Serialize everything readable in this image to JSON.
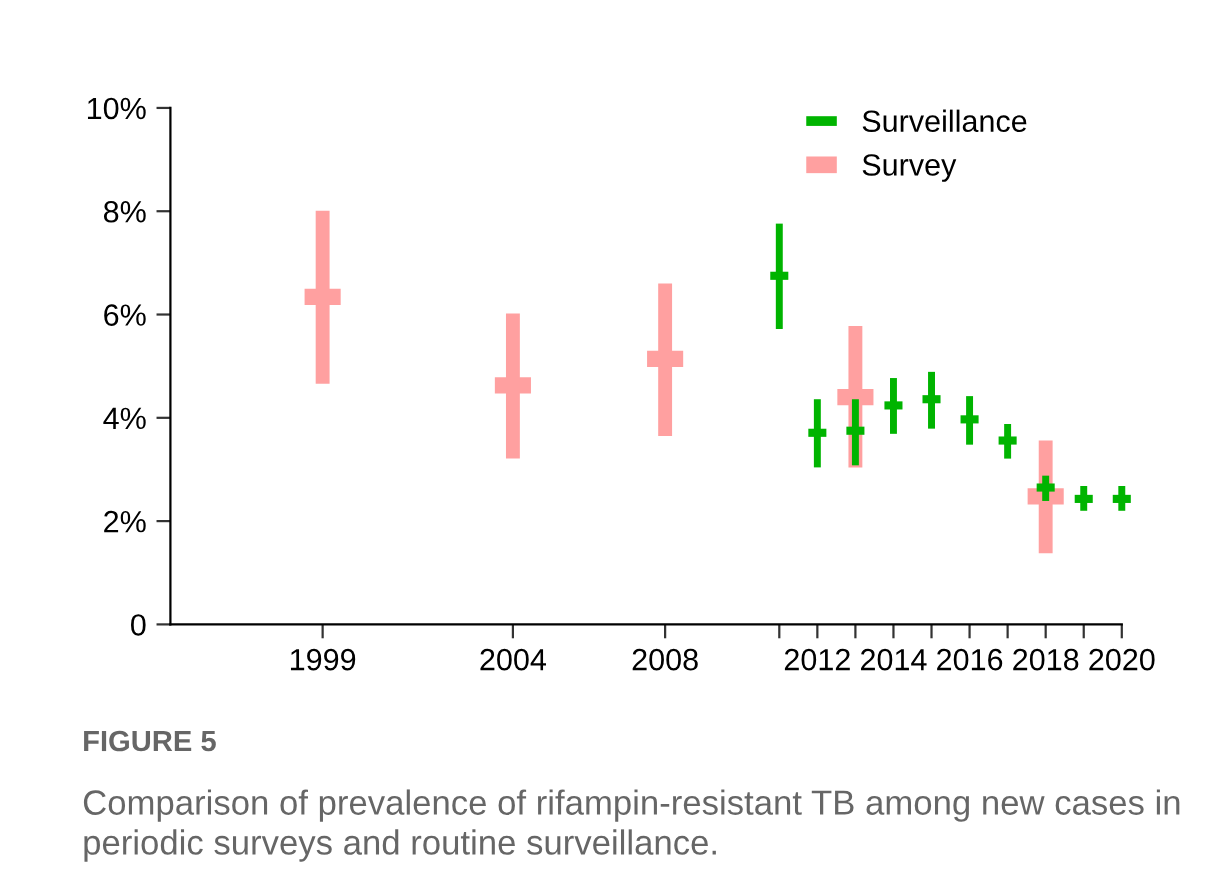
{
  "chart_data": {
    "type": "scatter",
    "annotations": [
      "FIGURE 5",
      "Comparison of prevalence of rifampin-resistant TB among new cases in periodic surveys and routine surveillance."
    ],
    "series": [
      {
        "name": "Surveillance",
        "color": "#00b400",
        "x": [
          2011,
          2012,
          2013,
          2014,
          2015,
          2016,
          2017,
          2018,
          2019,
          2020
        ],
        "values": [
          6.75,
          3.71,
          3.75,
          4.24,
          4.36,
          3.97,
          3.56,
          2.65,
          2.43,
          2.43
        ],
        "errors": [
          [
            5.72,
            7.76
          ],
          [
            3.04,
            4.36
          ],
          [
            3.08,
            4.36
          ],
          [
            3.69,
            4.77
          ],
          [
            3.79,
            4.89
          ],
          [
            3.48,
            4.42
          ],
          [
            3.21,
            3.88
          ],
          [
            2.39,
            2.88
          ],
          [
            2.2,
            2.68
          ],
          [
            2.2,
            2.68
          ]
        ]
      },
      {
        "name": "Survey",
        "color": "#ffa0a0",
        "x": [
          1999,
          2004,
          2008,
          2013,
          2018
        ],
        "values": [
          6.34,
          4.63,
          5.14,
          4.4,
          2.48
        ],
        "errors": [
          [
            4.66,
            8.01
          ],
          [
            3.21,
            6.02
          ],
          [
            3.65,
            6.6
          ],
          [
            3.04,
            5.78
          ],
          [
            1.38,
            3.56
          ]
        ]
      }
    ],
    "xlim": [
      1995,
      2020
    ],
    "xticks": [
      1999,
      2004,
      2008,
      {
        "value": 2011,
        "label": null
      },
      2012,
      {
        "value": 2013,
        "label": null
      },
      2014,
      {
        "value": 2015,
        "label": null
      },
      2016,
      {
        "value": 2017,
        "label": null
      },
      2018,
      {
        "value": 2019,
        "label": null
      },
      2020
    ],
    "ylim": [
      0,
      10
    ],
    "yticks": [
      0,
      {
        "value": 2,
        "label": "2%"
      },
      {
        "value": 4,
        "label": "4%"
      },
      {
        "value": 6,
        "label": "6%"
      },
      {
        "value": 8,
        "label": "8%"
      },
      {
        "value": 10,
        "label": "10%"
      }
    ],
    "grid": false,
    "legend": "top right"
  }
}
